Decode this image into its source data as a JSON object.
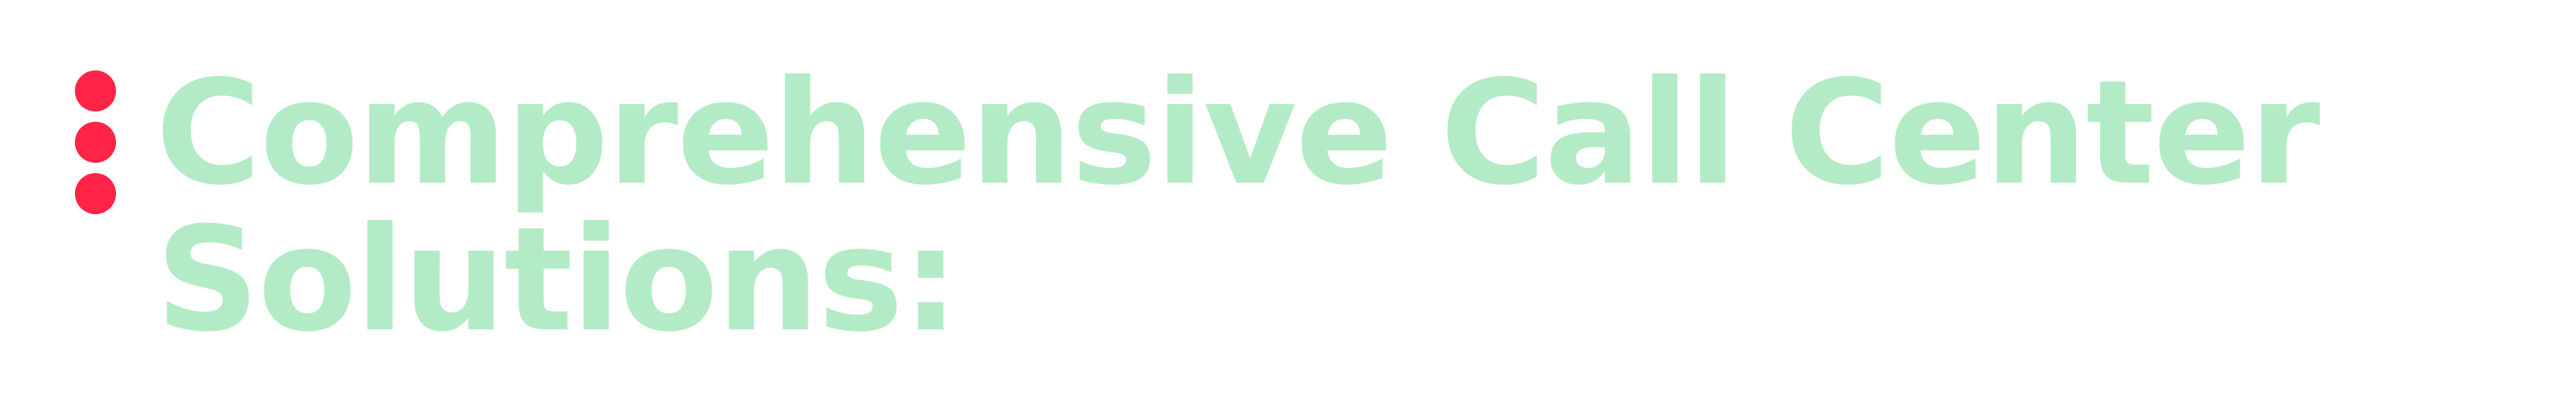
{
  "heading": {
    "text": "Comprehensive Call Center Solutions:"
  },
  "colors": {
    "heading_text": "#b3ebc6",
    "dot": "#ff2448",
    "background": "#ffffff"
  },
  "icon": {
    "name": "vertical-ellipsis-icon"
  }
}
